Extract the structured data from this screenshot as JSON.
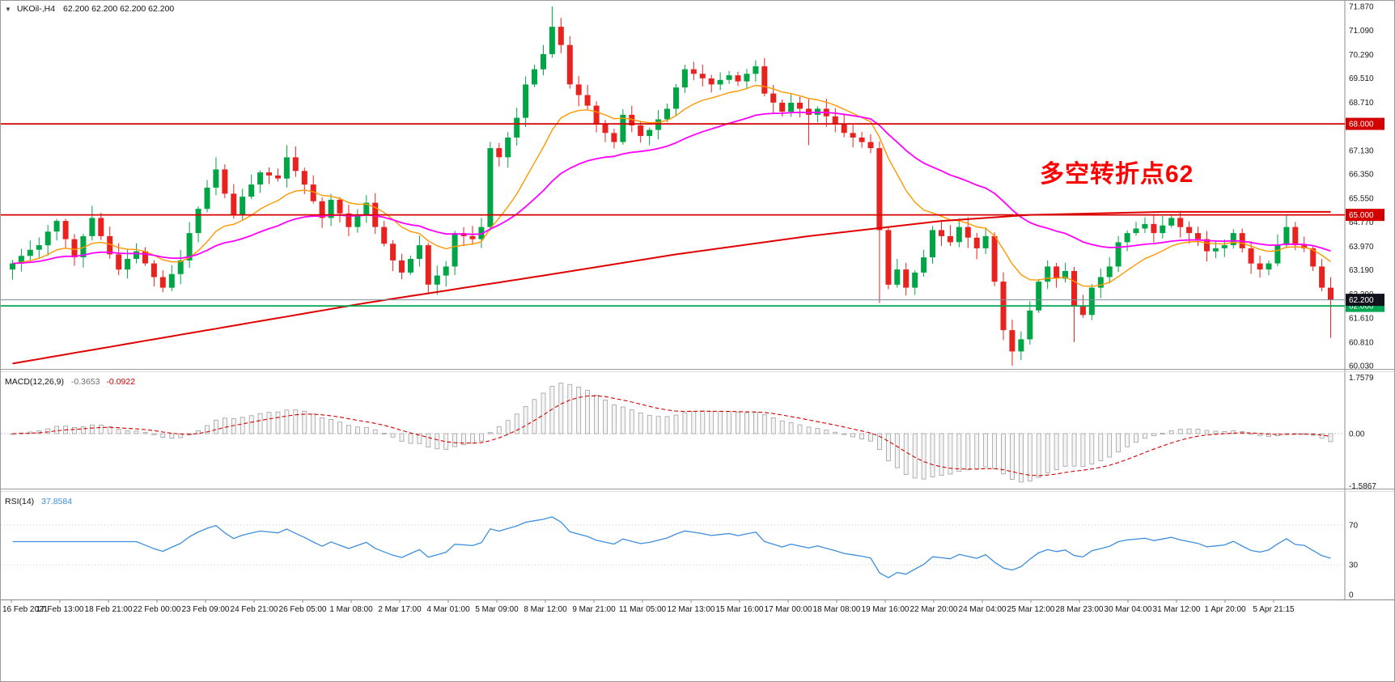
{
  "header": {
    "dropdown_icon": "▼",
    "symbol": "UKOil-,H4",
    "ohlc": "62.200 62.200 62.200 62.200"
  },
  "annotation": {
    "text": "多空转折点62",
    "color": "#FE0000"
  },
  "price_axis": {
    "ticks": [
      "71.870",
      "71.090",
      "70.290",
      "69.510",
      "68.710",
      "67.930",
      "67.130",
      "66.350",
      "65.550",
      "64.770",
      "63.970",
      "63.190",
      "62.390",
      "61.610",
      "60.810",
      "60.030"
    ]
  },
  "levels": [
    {
      "price": 68.0,
      "label": "68.000",
      "color": "#D40000"
    },
    {
      "price": 65.0,
      "label": "65.000",
      "color": "#D40000"
    },
    {
      "price": 62.0,
      "label": "62.000",
      "color": "#00A651"
    }
  ],
  "current_price": {
    "price": 62.2,
    "label": "62.200",
    "bg": "#10121C",
    "line_color": "#7A8B9C"
  },
  "indicators": {
    "macd": {
      "label": "MACD(12,26,9)",
      "value_main": "-0.3653",
      "value_signal": "-0.0922",
      "axis_max": 1.7579,
      "axis_min": -1.5867,
      "axis_labels": [
        "1.7579",
        "0.00",
        "-1.5867"
      ]
    },
    "rsi": {
      "label": "RSI(14)",
      "value_text": "37.8584",
      "levels": [
        70,
        30
      ],
      "axis_labels": [
        {
          "v": 70,
          "t": "70"
        },
        {
          "v": 30,
          "t": "30"
        },
        {
          "v": 0,
          "t": "0"
        }
      ]
    }
  },
  "time_axis": {
    "labels": [
      "16 Feb 2021",
      "17 Feb 13:00",
      "18 Feb 21:00",
      "22 Feb 00:00",
      "23 Feb 09:00",
      "24 Feb 21:00",
      "26 Feb 05:00",
      "1 Mar 08:00",
      "2 Mar 17:00",
      "4 Mar 01:00",
      "5 Mar 09:00",
      "8 Mar 12:00",
      "9 Mar 21:00",
      "11 Mar 05:00",
      "12 Mar 13:00",
      "15 Mar 16:00",
      "17 Mar 00:00",
      "18 Mar 08:00",
      "19 Mar 16:00",
      "22 Mar 20:00",
      "24 Mar 04:00",
      "25 Mar 12:00",
      "28 Mar 23:00",
      "30 Mar 04:00",
      "31 Mar 12:00",
      "1 Apr 20:00",
      "5 Apr 21:15"
    ]
  },
  "chart_data": {
    "type": "candlestick",
    "title": "UKOil- H4",
    "y_range": [
      60.03,
      71.87
    ],
    "first_open": 63.2,
    "closes": [
      63.4,
      63.65,
      63.85,
      64.0,
      64.45,
      64.8,
      64.2,
      63.6,
      64.3,
      64.9,
      64.3,
      63.7,
      63.2,
      63.55,
      63.8,
      63.4,
      62.95,
      62.6,
      63.05,
      63.5,
      64.4,
      65.2,
      65.9,
      66.5,
      65.7,
      65.0,
      65.6,
      66.0,
      66.4,
      66.3,
      66.2,
      66.9,
      66.45,
      66.0,
      65.45,
      64.9,
      65.5,
      65.05,
      64.6,
      65.0,
      65.4,
      64.6,
      64.05,
      63.5,
      63.1,
      63.55,
      64.0,
      62.7,
      63.0,
      63.3,
      64.4,
      64.3,
      64.2,
      64.6,
      67.2,
      66.9,
      67.55,
      68.2,
      69.3,
      69.8,
      70.3,
      71.2,
      70.6,
      69.3,
      68.95,
      68.6,
      68.0,
      67.7,
      67.4,
      68.3,
      67.95,
      67.6,
      67.8,
      68.15,
      68.5,
      69.2,
      69.8,
      69.65,
      69.5,
      69.3,
      69.45,
      69.6,
      69.4,
      69.65,
      69.9,
      69.0,
      68.7,
      68.4,
      68.7,
      68.5,
      68.3,
      68.5,
      68.25,
      68.0,
      67.7,
      67.55,
      67.4,
      67.2,
      64.5,
      62.7,
      63.2,
      62.6,
      63.1,
      63.6,
      64.5,
      64.3,
      64.1,
      64.6,
      64.25,
      63.9,
      64.3,
      62.8,
      61.2,
      60.5,
      60.9,
      61.85,
      62.8,
      63.3,
      62.9,
      63.15,
      62.0,
      61.7,
      62.6,
      62.95,
      63.3,
      64.1,
      64.4,
      64.55,
      64.7,
      64.4,
      64.65,
      64.9,
      64.6,
      64.4,
      64.2,
      63.8,
      63.9,
      64.0,
      64.4,
      63.9,
      63.4,
      63.2,
      63.4,
      64.0,
      64.6,
      64.0,
      63.9,
      63.3,
      62.6,
      62.2
    ],
    "high_overrides": {
      "9": 65.3,
      "23": 66.9,
      "31": 67.3,
      "61": 71.87,
      "76": 69.95,
      "84": 70.1,
      "144": 65.0
    },
    "low_overrides": {
      "17": 62.45,
      "47": 62.4,
      "90": 67.3,
      "98": 62.1,
      "113": 60.03,
      "120": 60.81,
      "149": 60.95
    },
    "up_color": "#00A546",
    "down_color": "#E8221E",
    "moving_averages": [
      {
        "name": "ema-fast-orange",
        "color": "#FF9800",
        "period": 13,
        "width": 1.4
      },
      {
        "name": "ema-mid-magenta",
        "color": "#FF00FF",
        "period": 34,
        "width": 1.8
      },
      {
        "name": "ma-slow-red",
        "color": "#E00000",
        "width": 2,
        "anchors": [
          [
            0,
            60.1
          ],
          [
            20,
            61.1
          ],
          [
            40,
            62.1
          ],
          [
            60,
            63.0
          ],
          [
            75,
            63.7
          ],
          [
            90,
            64.3
          ],
          [
            105,
            64.8
          ],
          [
            115,
            65.0
          ],
          [
            130,
            65.1
          ],
          [
            149,
            65.1
          ]
        ]
      }
    ],
    "macd": {
      "fast": 12,
      "slow": 26,
      "signal": 9,
      "hist_color": "#9F9F9F",
      "signal_color": "#D40000"
    },
    "rsi": {
      "period": 14,
      "color": "#3E8EDE"
    }
  }
}
